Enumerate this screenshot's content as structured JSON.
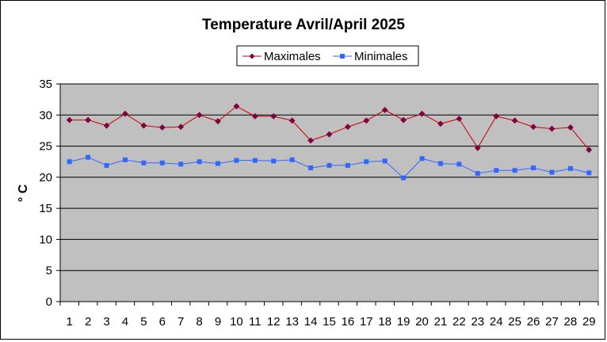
{
  "chart_data": {
    "type": "line",
    "title": "Temperature Avril/April 2025",
    "xlabel": "",
    "ylabel": "° C",
    "ylim": [
      0,
      35
    ],
    "yticks": [
      0,
      5,
      10,
      15,
      20,
      25,
      30,
      35
    ],
    "grid": true,
    "legend_position": "top",
    "categories": [
      "1",
      "2",
      "3",
      "4",
      "5",
      "6",
      "7",
      "8",
      "9",
      "10",
      "11",
      "12",
      "13",
      "14",
      "15",
      "16",
      "17",
      "18",
      "19",
      "20",
      "21",
      "22",
      "23",
      "24",
      "25",
      "26",
      "27",
      "28",
      "29"
    ],
    "series": [
      {
        "name": "Maximales",
        "color": "#cc0000",
        "marker_color": "#800040",
        "marker": "diamond",
        "values": [
          29.2,
          29.2,
          28.3,
          30.2,
          28.3,
          28.0,
          28.1,
          30.0,
          29.0,
          31.4,
          29.8,
          29.8,
          29.1,
          25.9,
          26.9,
          28.1,
          29.1,
          30.8,
          29.2,
          30.2,
          28.6,
          29.4,
          24.7,
          29.8,
          29.1,
          28.1,
          27.8,
          28.0,
          24.4
        ]
      },
      {
        "name": "Minimales",
        "color": "#3366ff",
        "marker_color": "#3366ff",
        "marker": "square",
        "values": [
          22.5,
          23.2,
          21.9,
          22.8,
          22.3,
          22.3,
          22.1,
          22.5,
          22.2,
          22.7,
          22.7,
          22.6,
          22.8,
          21.5,
          21.9,
          21.9,
          22.5,
          22.6,
          19.9,
          23.0,
          22.2,
          22.1,
          20.6,
          21.1,
          21.1,
          21.5,
          20.8,
          21.4,
          20.7
        ]
      }
    ],
    "plot_background": "#c0c0c0",
    "gridline_color": "#000000"
  }
}
